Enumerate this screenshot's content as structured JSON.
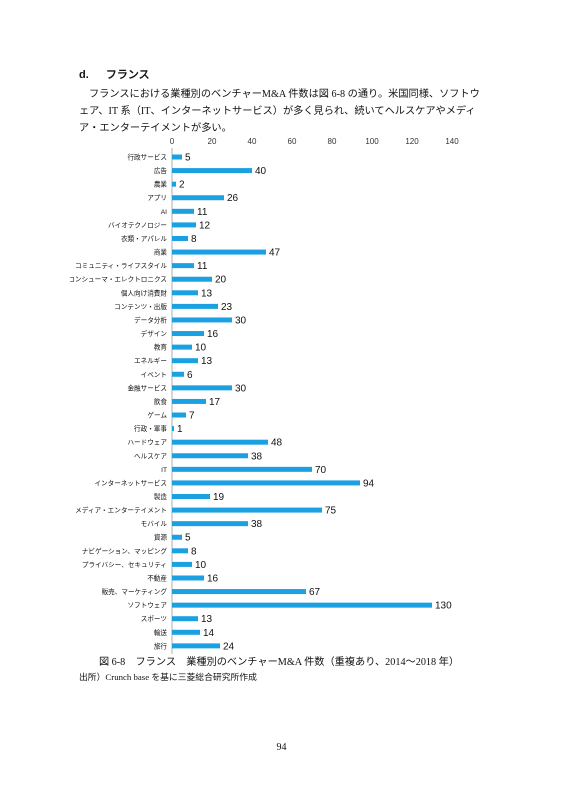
{
  "section": {
    "marker": "d.",
    "title": "フランス"
  },
  "paragraph": "フランスにおける業種別のベンチャーM&A 件数は図 6-8 の通り。米国同様、ソフトウェア、IT 系（IT、インターネットサービス）が多く見られ、続いてヘルスケアやメディア・エンターテイメントが多い。",
  "caption": "図 6-8　フランス　業種別のベンチャーM&A 件数（重複あり、2014～2018 年）",
  "source": "出所）Crunch base を基に三菱総合研究所作成",
  "page_number": "94",
  "chart_data": {
    "type": "bar",
    "orientation": "horizontal",
    "bar_color": "#1ba1e2",
    "xlim": [
      0,
      140
    ],
    "x_ticks": [
      "0",
      "20",
      "40",
      "60",
      "80",
      "100",
      "120",
      "140"
    ],
    "x_axis_position": "top",
    "categories": [
      "行政サービス",
      "広告",
      "農業",
      "アプリ",
      "AI",
      "バイオテクノロジー",
      "衣類・アパレル",
      "商業",
      "コミュニティ・ライフスタイル",
      "コンシューマ・エレクトロニクス",
      "個人向け消費財",
      "コンテンツ・出版",
      "データ分析",
      "デザイン",
      "教育",
      "エネルギー",
      "イベント",
      "金融サービス",
      "飲食",
      "ゲーム",
      "行政・軍事",
      "ハードウェア",
      "ヘルスケア",
      "IT",
      "インターネットサービス",
      "製造",
      "メディア・エンターテイメント",
      "モバイル",
      "資源",
      "ナビゲーション、マッピング",
      "プライバシー、セキュリティ",
      "不動産",
      "販売、マーケティング",
      "ソフトウェア",
      "スポーツ",
      "輸送",
      "旅行"
    ],
    "values": [
      5,
      40,
      2,
      26,
      11,
      12,
      8,
      47,
      11,
      20,
      13,
      23,
      30,
      16,
      10,
      13,
      6,
      30,
      17,
      7,
      1,
      48,
      38,
      70,
      94,
      19,
      75,
      38,
      5,
      8,
      10,
      16,
      67,
      130,
      13,
      14,
      24
    ],
    "value_labels": [
      "5",
      "40",
      "2",
      "26",
      "11",
      "12",
      "8",
      "47",
      "11",
      "20",
      "13",
      "23",
      "30",
      "16",
      "10",
      "13",
      "6",
      "30",
      "17",
      "7",
      "1",
      "48",
      "38",
      "70",
      "94",
      "19",
      "75",
      "38",
      "5",
      "8",
      "10",
      "16",
      "67",
      "130",
      "13",
      "14",
      "24"
    ]
  }
}
